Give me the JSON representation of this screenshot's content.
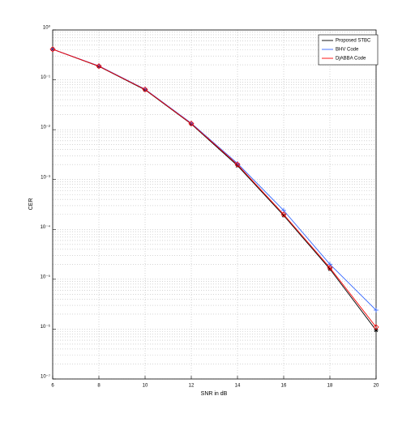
{
  "chart_data": {
    "type": "line",
    "xlabel": "SNR in dB",
    "ylabel": "CER",
    "x": [
      6,
      8,
      10,
      12,
      14,
      16,
      18,
      20
    ],
    "xlim": [
      6,
      20
    ],
    "xticks": [
      6,
      8,
      10,
      12,
      14,
      16,
      18,
      20
    ],
    "ylim": [
      1e-07,
      1
    ],
    "yscale": "log",
    "yticks": [
      {
        "value": 1e-07,
        "label": "10⁻⁷"
      },
      {
        "value": 1e-06,
        "label": "10⁻⁶"
      },
      {
        "value": 1e-05,
        "label": "10⁻⁵"
      },
      {
        "value": 0.0001,
        "label": "10⁻⁴"
      },
      {
        "value": 0.001,
        "label": "10⁻³"
      },
      {
        "value": 0.01,
        "label": "10⁻²"
      },
      {
        "value": 0.1,
        "label": "10⁻¹"
      },
      {
        "value": 1,
        "label": "10⁰"
      }
    ],
    "grid": true,
    "legend": "upper right",
    "series": [
      {
        "name": "Proposed STBC",
        "color": "#000000",
        "marker": "star",
        "values": [
          0.41,
          0.186,
          0.063,
          0.013,
          0.0019,
          0.00019,
          1.6e-05,
          9.5e-07
        ]
      },
      {
        "name": "BHV Code",
        "color": "#3366ff",
        "marker": "plus",
        "values": [
          0.41,
          0.19,
          0.065,
          0.0135,
          0.0021,
          0.00024,
          2e-05,
          2.4e-06
        ]
      },
      {
        "name": "DjABBA Code",
        "color": "#ff0000",
        "marker": "diamond",
        "values": [
          0.41,
          0.188,
          0.064,
          0.0132,
          0.002,
          0.0002,
          1.7e-05,
          1.1e-06
        ]
      }
    ]
  }
}
